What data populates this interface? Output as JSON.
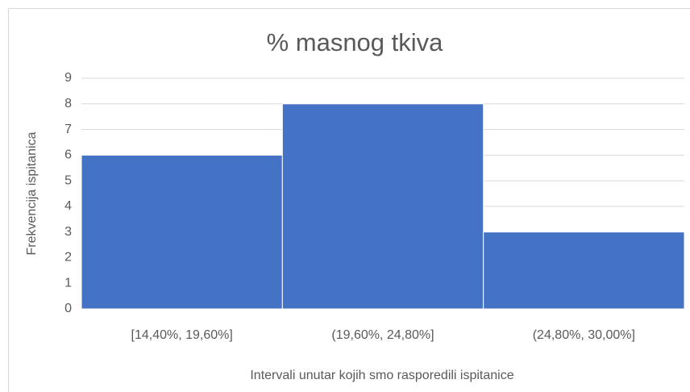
{
  "chart_data": {
    "type": "bar",
    "title": "% masnog tkiva",
    "categories": [
      "[14,40%, 19,60%]",
      "(19,60%, 24,80%]",
      "(24,80%, 30,00%]"
    ],
    "values": [
      6,
      8,
      3
    ],
    "color": "#4472c4",
    "xlabel": "Intervali unutar kojih smo rasporedili ispitanice",
    "ylabel": "Frekvencija ispitanica",
    "ylim": [
      0,
      9
    ],
    "yticks": [
      0,
      1,
      2,
      3,
      4,
      5,
      6,
      7,
      8,
      9
    ],
    "grid": true
  }
}
